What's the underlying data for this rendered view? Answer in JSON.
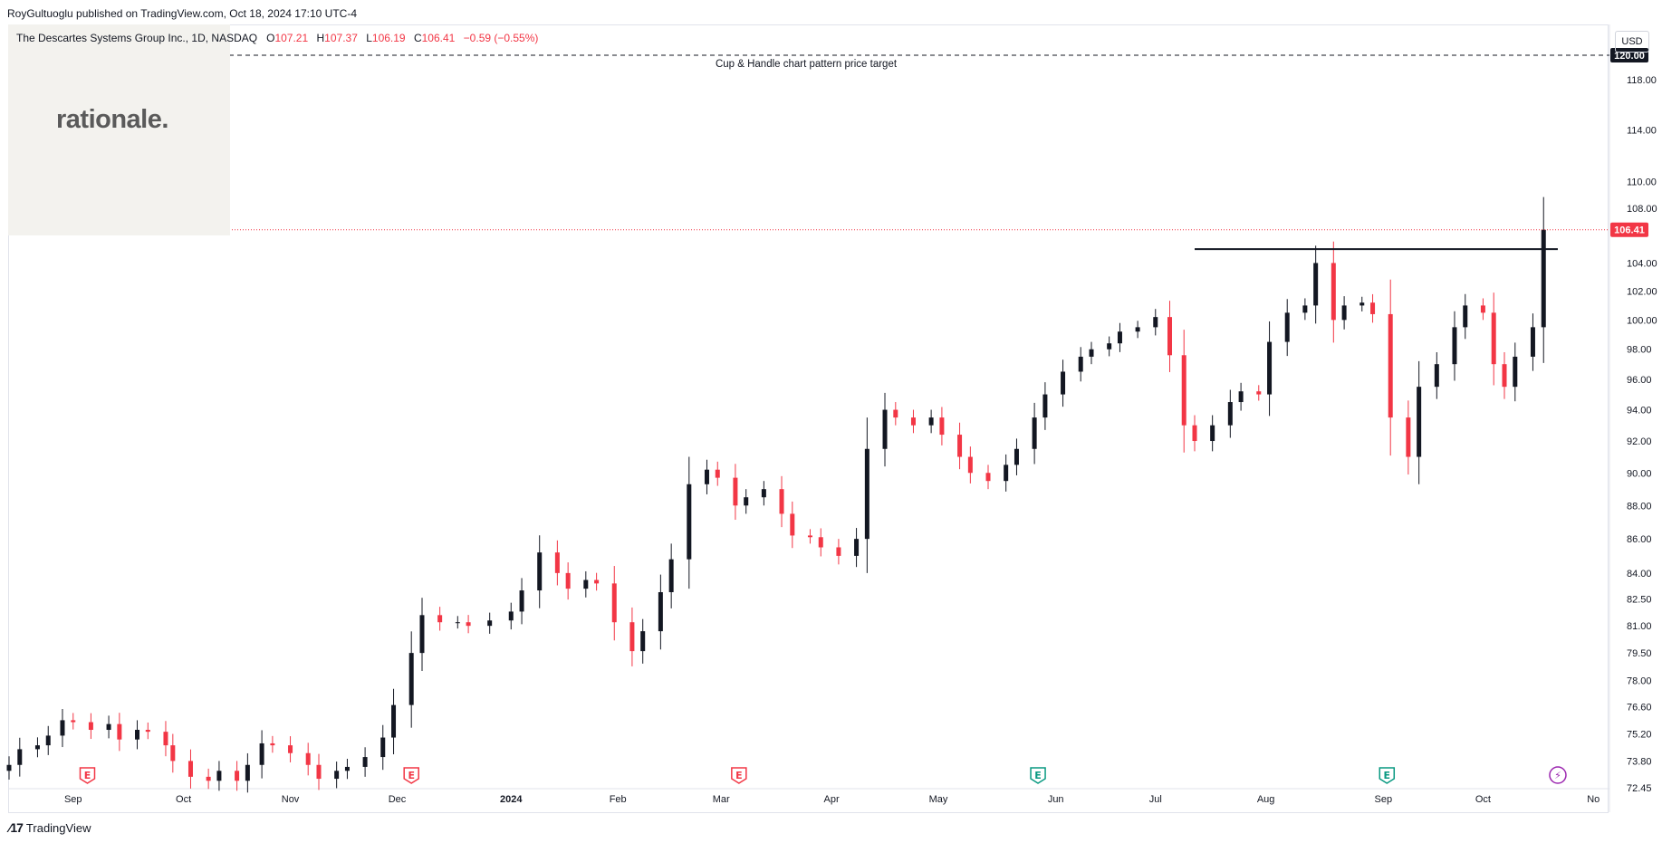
{
  "header": {
    "publish_line": "RoyGultuoglu published on TradingView.com, Oct 18, 2024 17:10 UTC-4",
    "symbol": "The Descartes Systems Group Inc., 1D, NASDAQ",
    "open_label": "O",
    "open": "107.21",
    "high_label": "H",
    "high": "107.37",
    "low_label": "L",
    "low": "106.19",
    "close_label": "C",
    "close": "106.41",
    "change": "−0.59 (−0.55%)"
  },
  "logo_text": "rationale.",
  "currency_button": "USD",
  "footer_brand": "TradingView",
  "colors": {
    "up": "#131722",
    "down": "#f23645",
    "accent_red": "#f23645",
    "earnings_red": "#f23645",
    "earnings_green": "#089981",
    "dividend_purple": "#9c27b0"
  },
  "chart_data": {
    "type": "candlestick",
    "title": "",
    "ylim": [
      72.45,
      122.5
    ],
    "y_scale": "log",
    "y_ticks": [
      "72.45",
      "73.80",
      "75.20",
      "76.60",
      "78.00",
      "79.50",
      "81.00",
      "82.50",
      "84.00",
      "86.00",
      "88.00",
      "90.00",
      "92.00",
      "94.00",
      "96.00",
      "98.00",
      "100.00",
      "102.00",
      "104.00",
      "108.00",
      "110.00",
      "114.00",
      "118.00"
    ],
    "x_ticks": [
      "Sep",
      "Oct",
      "Nov",
      "Dec",
      "2024",
      "Feb",
      "Mar",
      "Apr",
      "May",
      "Jun",
      "Jul",
      "Aug",
      "Sep",
      "Oct",
      "No"
    ],
    "x_tick_dates": [
      "2023-09-01",
      "2023-10-02",
      "2023-11-01",
      "2023-12-01",
      "2024-01-02",
      "2024-02-01",
      "2024-03-01",
      "2024-04-01",
      "2024-05-01",
      "2024-06-03",
      "2024-07-01",
      "2024-08-01",
      "2024-09-03",
      "2024-10-01",
      "2024-11-01"
    ],
    "x_range": [
      "2023-08-14",
      "2024-11-05"
    ],
    "close_series": [
      [
        "2023-08-14",
        73.6
      ],
      [
        "2023-08-17",
        74.4
      ],
      [
        "2023-08-22",
        74.6
      ],
      [
        "2023-08-25",
        75.1
      ],
      [
        "2023-08-29",
        75.9
      ],
      [
        "2023-09-01",
        75.8
      ],
      [
        "2023-09-06",
        75.4
      ],
      [
        "2023-09-11",
        75.7
      ],
      [
        "2023-09-14",
        74.9
      ],
      [
        "2023-09-19",
        75.4
      ],
      [
        "2023-09-22",
        75.3
      ],
      [
        "2023-09-27",
        74.6
      ],
      [
        "2023-09-29",
        73.8
      ],
      [
        "2023-10-04",
        73.0
      ],
      [
        "2023-10-09",
        72.8
      ],
      [
        "2023-10-12",
        73.3
      ],
      [
        "2023-10-17",
        72.8
      ],
      [
        "2023-10-20",
        73.6
      ],
      [
        "2023-10-24",
        74.7
      ],
      [
        "2023-10-27",
        74.6
      ],
      [
        "2023-11-01",
        74.2
      ],
      [
        "2023-11-06",
        73.6
      ],
      [
        "2023-11-09",
        72.9
      ],
      [
        "2023-11-14",
        73.3
      ],
      [
        "2023-11-17",
        73.5
      ],
      [
        "2023-11-22",
        74.0
      ],
      [
        "2023-11-27",
        75.0
      ],
      [
        "2023-11-30",
        76.7
      ],
      [
        "2023-12-05",
        79.5
      ],
      [
        "2023-12-08",
        81.6
      ],
      [
        "2023-12-13",
        81.2
      ],
      [
        "2023-12-18",
        81.2
      ],
      [
        "2023-12-21",
        81.0
      ],
      [
        "2023-12-27",
        81.3
      ],
      [
        "2024-01-02",
        81.8
      ],
      [
        "2024-01-05",
        83.0
      ],
      [
        "2024-01-10",
        85.2
      ],
      [
        "2024-01-15",
        84.0
      ],
      [
        "2024-01-18",
        83.1
      ],
      [
        "2024-01-23",
        83.6
      ],
      [
        "2024-01-26",
        83.4
      ],
      [
        "2024-01-31",
        81.2
      ],
      [
        "2024-02-05",
        79.6
      ],
      [
        "2024-02-08",
        80.7
      ],
      [
        "2024-02-13",
        82.9
      ],
      [
        "2024-02-16",
        84.8
      ],
      [
        "2024-02-21",
        89.3
      ],
      [
        "2024-02-26",
        90.2
      ],
      [
        "2024-02-29",
        89.7
      ],
      [
        "2024-03-05",
        88.0
      ],
      [
        "2024-03-08",
        88.5
      ],
      [
        "2024-03-13",
        89.0
      ],
      [
        "2024-03-18",
        87.5
      ],
      [
        "2024-03-21",
        86.2
      ],
      [
        "2024-03-26",
        86.1
      ],
      [
        "2024-03-29",
        85.5
      ],
      [
        "2024-04-03",
        85.0
      ],
      [
        "2024-04-08",
        86.0
      ],
      [
        "2024-04-11",
        91.5
      ],
      [
        "2024-04-16",
        94.0
      ],
      [
        "2024-04-19",
        93.5
      ],
      [
        "2024-04-24",
        93.0
      ],
      [
        "2024-04-29",
        93.5
      ],
      [
        "2024-05-02",
        92.4
      ],
      [
        "2024-05-07",
        91.0
      ],
      [
        "2024-05-10",
        90.0
      ],
      [
        "2024-05-15",
        89.5
      ],
      [
        "2024-05-20",
        90.5
      ],
      [
        "2024-05-23",
        91.5
      ],
      [
        "2024-05-28",
        93.5
      ],
      [
        "2024-05-31",
        95.0
      ],
      [
        "2024-06-05",
        96.5
      ],
      [
        "2024-06-10",
        97.5
      ],
      [
        "2024-06-13",
        98.0
      ],
      [
        "2024-06-18",
        98.4
      ],
      [
        "2024-06-21",
        99.2
      ],
      [
        "2024-06-26",
        99.5
      ],
      [
        "2024-07-01",
        100.2
      ],
      [
        "2024-07-05",
        97.6
      ],
      [
        "2024-07-09",
        93.0
      ],
      [
        "2024-07-12",
        92.0
      ],
      [
        "2024-07-17",
        93.0
      ],
      [
        "2024-07-22",
        94.5
      ],
      [
        "2024-07-25",
        95.2
      ],
      [
        "2024-07-30",
        95.0
      ],
      [
        "2024-08-02",
        98.5
      ],
      [
        "2024-08-07",
        100.5
      ],
      [
        "2024-08-12",
        101.0
      ],
      [
        "2024-08-15",
        104.0
      ],
      [
        "2024-08-20",
        100.0
      ],
      [
        "2024-08-23",
        101.0
      ],
      [
        "2024-08-28",
        101.2
      ],
      [
        "2024-08-31",
        100.4
      ],
      [
        "2024-09-05",
        93.5
      ],
      [
        "2024-09-10",
        91.0
      ],
      [
        "2024-09-13",
        95.5
      ],
      [
        "2024-09-18",
        97.0
      ],
      [
        "2024-09-23",
        99.5
      ],
      [
        "2024-09-26",
        101.0
      ],
      [
        "2024-10-01",
        100.5
      ],
      [
        "2024-10-04",
        97.0
      ],
      [
        "2024-10-07",
        95.5
      ],
      [
        "2024-10-10",
        97.5
      ],
      [
        "2024-10-15",
        99.5
      ],
      [
        "2024-10-18",
        106.41
      ]
    ],
    "annotations": [
      {
        "text": "Cup & Handle chart pattern price target",
        "price": 120.0,
        "style": "dashed"
      },
      {
        "text": "",
        "price": 105.0,
        "style": "solid",
        "from": "2024-07-12",
        "to": "2024-10-22"
      }
    ],
    "price_labels": [
      {
        "text": "120.00",
        "price": 120.0,
        "bg": "#131722"
      },
      {
        "text": "106.41",
        "price": 106.41,
        "bg": "#f23645"
      }
    ],
    "event_markers": [
      {
        "label": "E",
        "date": "2023-09-05",
        "kind": "earnings_red"
      },
      {
        "label": "E",
        "date": "2023-12-05",
        "kind": "earnings_red"
      },
      {
        "label": "E",
        "date": "2024-03-06",
        "kind": "earnings_red"
      },
      {
        "label": "E",
        "date": "2024-05-29",
        "kind": "earnings_green"
      },
      {
        "label": "E",
        "date": "2024-09-04",
        "kind": "earnings_green"
      },
      {
        "label": "⚡",
        "date": "2024-10-22",
        "kind": "dividend_purple"
      }
    ]
  }
}
